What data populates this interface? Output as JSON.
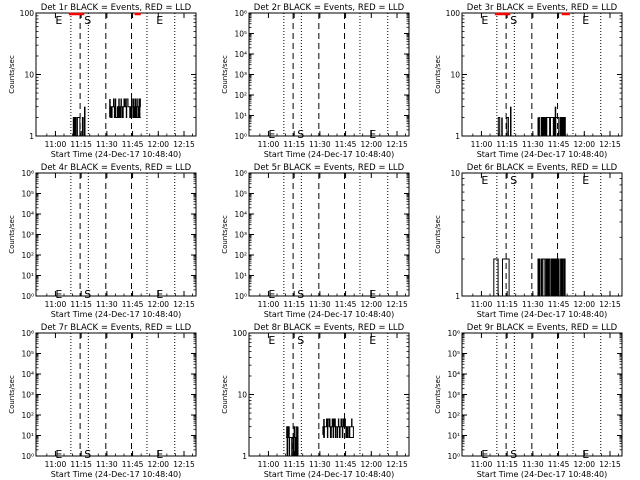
{
  "page": {
    "background": "#ffffff",
    "foreground": "#000000",
    "lld_color": "#ff0000"
  },
  "chart_data": [
    {
      "type": "line",
      "title": "Det 1r BLACK = Events, RED = LLD",
      "xlabel": "Start Time (24-Dec-17 10:48:40)",
      "ylabel": "Counts/sec",
      "xticks": [
        "11:00",
        "11:15",
        "11:30",
        "11:45",
        "12:00",
        "12:15"
      ],
      "yscale": "log",
      "ylim": [
        1,
        100
      ],
      "yticks": [
        {
          "v": 1,
          "t": "1"
        },
        {
          "v": 10,
          "t": "10"
        },
        {
          "v": 100,
          "t": "100"
        }
      ],
      "markers": {
        "dotted": [
          11.15,
          11.32,
          11.89,
          12.16
        ],
        "dashed": [
          11.24,
          11.49,
          11.74
        ]
      },
      "labels": [
        {
          "t": "E",
          "x": 11.0,
          "y": 100
        },
        {
          "t": "S",
          "x": 11.28,
          "y": 100
        },
        {
          "t": "E",
          "x": 11.98,
          "y": 100
        }
      ],
      "series": [
        {
          "name": "BLACK = Events",
          "segments": [
            {
              "x0": 11.17,
              "x1": 11.29,
              "n": 30,
              "lo": 1,
              "hi": 2,
              "base": 2,
              "spikes": [
                {
                  "x": 11.285,
                  "v": 3
                }
              ]
            },
            {
              "x0": 11.53,
              "x1": 11.83,
              "n": 70,
              "lo": 2,
              "hi": 4,
              "base": 2.2,
              "spikes": [
                {
                  "x": 11.53,
                  "v": 4
                }
              ]
            },
            {
              "x0": 11.78,
              "x1": 11.83,
              "n": 2,
              "lo": 2,
              "hi": 2,
              "base": 2
            }
          ]
        }
      ],
      "lld": [
        {
          "x0": 11.13,
          "x1": 11.28,
          "v": 100
        },
        {
          "x0": 11.77,
          "x1": 11.83,
          "v": 100
        }
      ]
    },
    {
      "type": "line",
      "title": "Det 2r BLACK = Events, RED = LLD",
      "xlabel": "Start Time (24-Dec-17 10:48:40)",
      "ylabel": "Counts/sec",
      "xticks": [
        "11:00",
        "11:15",
        "11:30",
        "11:45",
        "12:00",
        "12:15"
      ],
      "yscale": "log",
      "ylim": [
        1,
        1000000
      ],
      "yticks": [
        {
          "v": 1,
          "t": "10⁰"
        },
        {
          "v": 10,
          "t": "10¹"
        },
        {
          "v": 100,
          "t": "10²"
        },
        {
          "v": 1000,
          "t": "10³"
        },
        {
          "v": 10000,
          "t": "10⁴"
        },
        {
          "v": 100000,
          "t": "10⁵"
        },
        {
          "v": 1000000,
          "t": "10⁶"
        }
      ],
      "markers": {
        "dotted": [
          11.15,
          11.32,
          11.89,
          12.16
        ],
        "dashed": [
          11.24,
          11.49,
          11.74
        ]
      },
      "labels": [
        {
          "t": "E",
          "x": 11.0,
          "y": 1.6
        },
        {
          "t": "S",
          "x": 11.28,
          "y": 1.6
        },
        {
          "t": "E",
          "x": 11.98,
          "y": 1.6
        }
      ],
      "series": [
        {
          "name": "BLACK = Events",
          "segments": []
        }
      ],
      "lld": []
    },
    {
      "type": "line",
      "title": "Det 3r BLACK = Events, RED = LLD",
      "xlabel": "Start Time (24-Dec-17 10:48:40)",
      "ylabel": "Counts/sec",
      "xticks": [
        "11:00",
        "11:15",
        "11:30",
        "11:45",
        "12:00",
        "12:15"
      ],
      "yscale": "log",
      "ylim": [
        1,
        100
      ],
      "yticks": [
        {
          "v": 1,
          "t": "1"
        },
        {
          "v": 10,
          "t": "10"
        },
        {
          "v": 100,
          "t": "100"
        }
      ],
      "markers": {
        "dotted": [
          11.15,
          11.32,
          11.89,
          12.16
        ],
        "dashed": [
          11.24,
          11.49,
          11.74
        ]
      },
      "labels": [
        {
          "t": "E",
          "x": 11.0,
          "y": 100
        },
        {
          "t": "S",
          "x": 11.28,
          "y": 100
        },
        {
          "t": "E",
          "x": 11.98,
          "y": 100
        }
      ],
      "series": [
        {
          "name": "BLACK = Events",
          "segments": [
            {
              "x0": 11.15,
              "x1": 11.29,
              "n": 10,
              "lo": 1,
              "hi": 2,
              "base": 1,
              "spikes": [
                {
                  "x": 11.2,
                  "v": 2
                },
                {
                  "x": 11.285,
                  "v": 3
                }
              ]
            },
            {
              "x0": 11.55,
              "x1": 11.82,
              "n": 60,
              "lo": 1,
              "hi": 2,
              "base": 2,
              "spikes": [
                {
                  "x": 11.72,
                  "v": 3
                }
              ]
            }
          ]
        }
      ],
      "lld": [
        {
          "x0": 11.13,
          "x1": 11.28,
          "v": 100
        },
        {
          "x0": 11.78,
          "x1": 11.86,
          "v": 100
        }
      ]
    },
    {
      "type": "line",
      "title": "Det 4r BLACK = Events, RED = LLD",
      "xlabel": "Start Time (24-Dec-17 10:48:40)",
      "ylabel": "Counts/sec",
      "xticks": [
        "11:00",
        "11:15",
        "11:30",
        "11:45",
        "12:00",
        "12:15"
      ],
      "yscale": "log",
      "ylim": [
        1,
        1000000
      ],
      "yticks": [
        {
          "v": 1,
          "t": "10⁰"
        },
        {
          "v": 10,
          "t": "10¹"
        },
        {
          "v": 100,
          "t": "10²"
        },
        {
          "v": 1000,
          "t": "10³"
        },
        {
          "v": 10000,
          "t": "10⁴"
        },
        {
          "v": 100000,
          "t": "10⁵"
        },
        {
          "v": 1000000,
          "t": "10⁶"
        }
      ],
      "markers": {
        "dotted": [
          11.15,
          11.32,
          11.89,
          12.16
        ],
        "dashed": [
          11.24,
          11.49,
          11.74
        ]
      },
      "labels": [
        {
          "t": "E",
          "x": 11.0,
          "y": 1.6
        },
        {
          "t": "S",
          "x": 11.28,
          "y": 1.6
        },
        {
          "t": "E",
          "x": 11.98,
          "y": 1.6
        }
      ],
      "series": [
        {
          "name": "BLACK = Events",
          "segments": []
        }
      ],
      "lld": []
    },
    {
      "type": "line",
      "title": "Det 5r BLACK = Events, RED = LLD",
      "xlabel": "Start Time (24-Dec-17 10:48:40)",
      "ylabel": "Counts/sec",
      "xticks": [
        "11:00",
        "11:15",
        "11:30",
        "11:45",
        "12:00",
        "12:15"
      ],
      "yscale": "log",
      "ylim": [
        1,
        1000000
      ],
      "yticks": [
        {
          "v": 1,
          "t": "10⁰"
        },
        {
          "v": 10,
          "t": "10¹"
        },
        {
          "v": 100,
          "t": "10²"
        },
        {
          "v": 1000,
          "t": "10³"
        },
        {
          "v": 10000,
          "t": "10⁴"
        },
        {
          "v": 100000,
          "t": "10⁵"
        },
        {
          "v": 1000000,
          "t": "10⁶"
        }
      ],
      "markers": {
        "dotted": [
          11.15,
          11.32,
          11.89,
          12.16
        ],
        "dashed": [
          11.24,
          11.49,
          11.74
        ]
      },
      "labels": [
        {
          "t": "E",
          "x": 11.0,
          "y": 1.6
        },
        {
          "t": "S",
          "x": 11.28,
          "y": 1.6
        },
        {
          "t": "E",
          "x": 11.98,
          "y": 1.6
        }
      ],
      "series": [
        {
          "name": "BLACK = Events",
          "segments": []
        }
      ],
      "lld": []
    },
    {
      "type": "line",
      "title": "Det 6r BLACK = Events, RED = LLD",
      "xlabel": "Start Time (24-Dec-17 10:48:40)",
      "ylabel": "Counts/sec",
      "xticks": [
        "11:00",
        "11:15",
        "11:30",
        "11:45",
        "12:00",
        "12:15"
      ],
      "yscale": "log",
      "ylim": [
        1,
        10
      ],
      "yticks": [
        {
          "v": 1,
          "t": "1"
        },
        {
          "v": 10,
          "t": "10"
        }
      ],
      "markers": {
        "dotted": [
          11.15,
          11.32,
          11.89,
          12.16
        ],
        "dashed": [
          11.24,
          11.49,
          11.74
        ]
      },
      "labels": [
        {
          "t": "E",
          "x": 11.0,
          "y": 10
        },
        {
          "t": "S",
          "x": 11.28,
          "y": 10
        },
        {
          "t": "E",
          "x": 11.98,
          "y": 10
        }
      ],
      "series": [
        {
          "name": "BLACK = Events",
          "segments": [
            {
              "x0": 11.12,
              "x1": 11.29,
              "n": 8,
              "lo": 1,
              "hi": 2,
              "base": 1
            },
            {
              "x0": 11.55,
              "x1": 11.82,
              "n": 80,
              "lo": 1,
              "hi": 2,
              "base": 1
            }
          ]
        }
      ],
      "lld": []
    },
    {
      "type": "line",
      "title": "Det 7r BLACK = Events, RED = LLD",
      "xlabel": "Start Time (24-Dec-17 10:48:40)",
      "ylabel": "Counts/sec",
      "xticks": [
        "11:00",
        "11:15",
        "11:30",
        "11:45",
        "12:00",
        "12:15"
      ],
      "yscale": "log",
      "ylim": [
        1,
        1000000
      ],
      "yticks": [
        {
          "v": 1,
          "t": "10⁰"
        },
        {
          "v": 10,
          "t": "10¹"
        },
        {
          "v": 100,
          "t": "10²"
        },
        {
          "v": 1000,
          "t": "10³"
        },
        {
          "v": 10000,
          "t": "10⁴"
        },
        {
          "v": 100000,
          "t": "10⁵"
        },
        {
          "v": 1000000,
          "t": "10⁶"
        }
      ],
      "markers": {
        "dotted": [
          11.15,
          11.32,
          11.89,
          12.16
        ],
        "dashed": [
          11.24,
          11.49,
          11.74
        ]
      },
      "labels": [
        {
          "t": "E",
          "x": 11.0,
          "y": 1.6
        },
        {
          "t": "S",
          "x": 11.28,
          "y": 1.6
        },
        {
          "t": "E",
          "x": 11.98,
          "y": 1.6
        }
      ],
      "series": [
        {
          "name": "BLACK = Events",
          "segments": []
        }
      ],
      "lld": []
    },
    {
      "type": "line",
      "title": "Det 8r BLACK = Events, RED = LLD",
      "xlabel": "Start Time (24-Dec-17 10:48:40)",
      "ylabel": "Counts/sec",
      "xticks": [
        "11:00",
        "11:15",
        "11:30",
        "11:45",
        "12:00",
        "12:15"
      ],
      "yscale": "log",
      "ylim": [
        1,
        100
      ],
      "yticks": [
        {
          "v": 1,
          "t": "1"
        },
        {
          "v": 10,
          "t": "10"
        },
        {
          "v": 100,
          "t": "100"
        }
      ],
      "markers": {
        "dotted": [
          11.15,
          11.32,
          11.89,
          12.16
        ],
        "dashed": [
          11.24,
          11.49,
          11.74
        ]
      },
      "labels": [
        {
          "t": "E",
          "x": 11.0,
          "y": 100
        },
        {
          "t": "S",
          "x": 11.28,
          "y": 100
        },
        {
          "t": "E",
          "x": 11.98,
          "y": 100
        }
      ],
      "series": [
        {
          "name": "BLACK = Events",
          "segments": [
            {
              "x0": 11.17,
              "x1": 11.29,
              "n": 30,
              "lo": 1,
              "hi": 3,
              "base": 2,
              "spikes": [
                {
                  "x": 11.285,
                  "v": 3
                }
              ]
            },
            {
              "x0": 11.53,
              "x1": 11.83,
              "n": 70,
              "lo": 2,
              "hi": 4,
              "base": 2.2,
              "spikes": [
                {
                  "x": 11.54,
                  "v": 4
                }
              ]
            },
            {
              "x0": 11.78,
              "x1": 11.83,
              "n": 2,
              "lo": 2,
              "hi": 2,
              "base": 2
            }
          ]
        }
      ],
      "lld": []
    },
    {
      "type": "line",
      "title": "Det 9r BLACK = Events, RED = LLD",
      "xlabel": "Start Time (24-Dec-17 10:48:40)",
      "ylabel": "Counts/sec",
      "xticks": [
        "11:00",
        "11:15",
        "11:30",
        "11:45",
        "12:00",
        "12:15"
      ],
      "yscale": "log",
      "ylim": [
        1,
        1000000
      ],
      "yticks": [
        {
          "v": 1,
          "t": "10⁰"
        },
        {
          "v": 10,
          "t": "10¹"
        },
        {
          "v": 100,
          "t": "10²"
        },
        {
          "v": 1000,
          "t": "10³"
        },
        {
          "v": 10000,
          "t": "10⁴"
        },
        {
          "v": 100000,
          "t": "10⁵"
        },
        {
          "v": 1000000,
          "t": "10⁶"
        }
      ],
      "markers": {
        "dotted": [
          11.15,
          11.32,
          11.89,
          12.16
        ],
        "dashed": [
          11.24,
          11.49,
          11.74
        ]
      },
      "labels": [
        {
          "t": "E",
          "x": 11.0,
          "y": 1.6
        },
        {
          "t": "S",
          "x": 11.28,
          "y": 1.6
        },
        {
          "t": "E",
          "x": 11.98,
          "y": 1.6
        }
      ],
      "series": [
        {
          "name": "BLACK = Events",
          "segments": []
        }
      ],
      "lld": []
    }
  ]
}
